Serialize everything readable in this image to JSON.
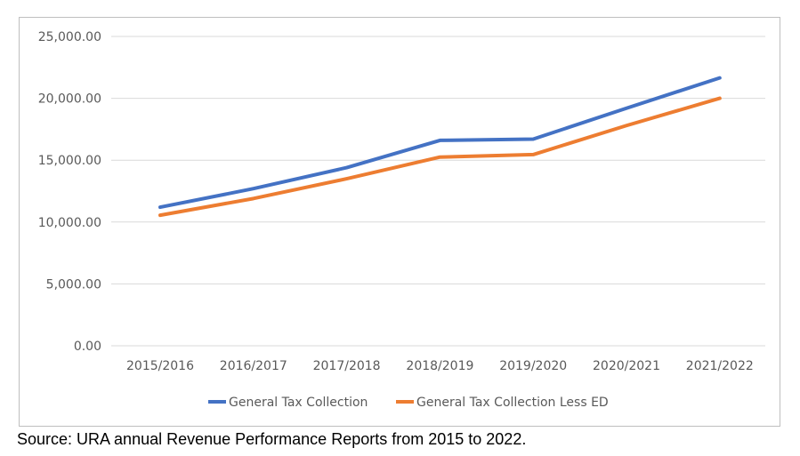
{
  "chart_data": {
    "type": "line",
    "categories": [
      "2015/2016",
      "2016/2017",
      "2017/2018",
      "2018/2019",
      "2019/2020",
      "2020/2021",
      "2021/2022"
    ],
    "series": [
      {
        "name": "General Tax Collection",
        "color": "#4472c4",
        "values": [
          11200,
          12700,
          14400,
          16600,
          16700,
          19200,
          21650
        ]
      },
      {
        "name": "General Tax Collection Less ED",
        "color": "#ed7d31",
        "values": [
          10550,
          11900,
          13500,
          15250,
          15450,
          17800,
          20000
        ]
      }
    ],
    "y_ticks": [
      "0.00",
      "5,000.00",
      "10,000.00",
      "15,000.00",
      "20,000.00",
      "25,000.00"
    ],
    "ylim": [
      0,
      25000
    ],
    "grid": true,
    "legend_position": "bottom"
  },
  "source": "Source: URA annual Revenue Performance Reports from 2015 to 2022."
}
